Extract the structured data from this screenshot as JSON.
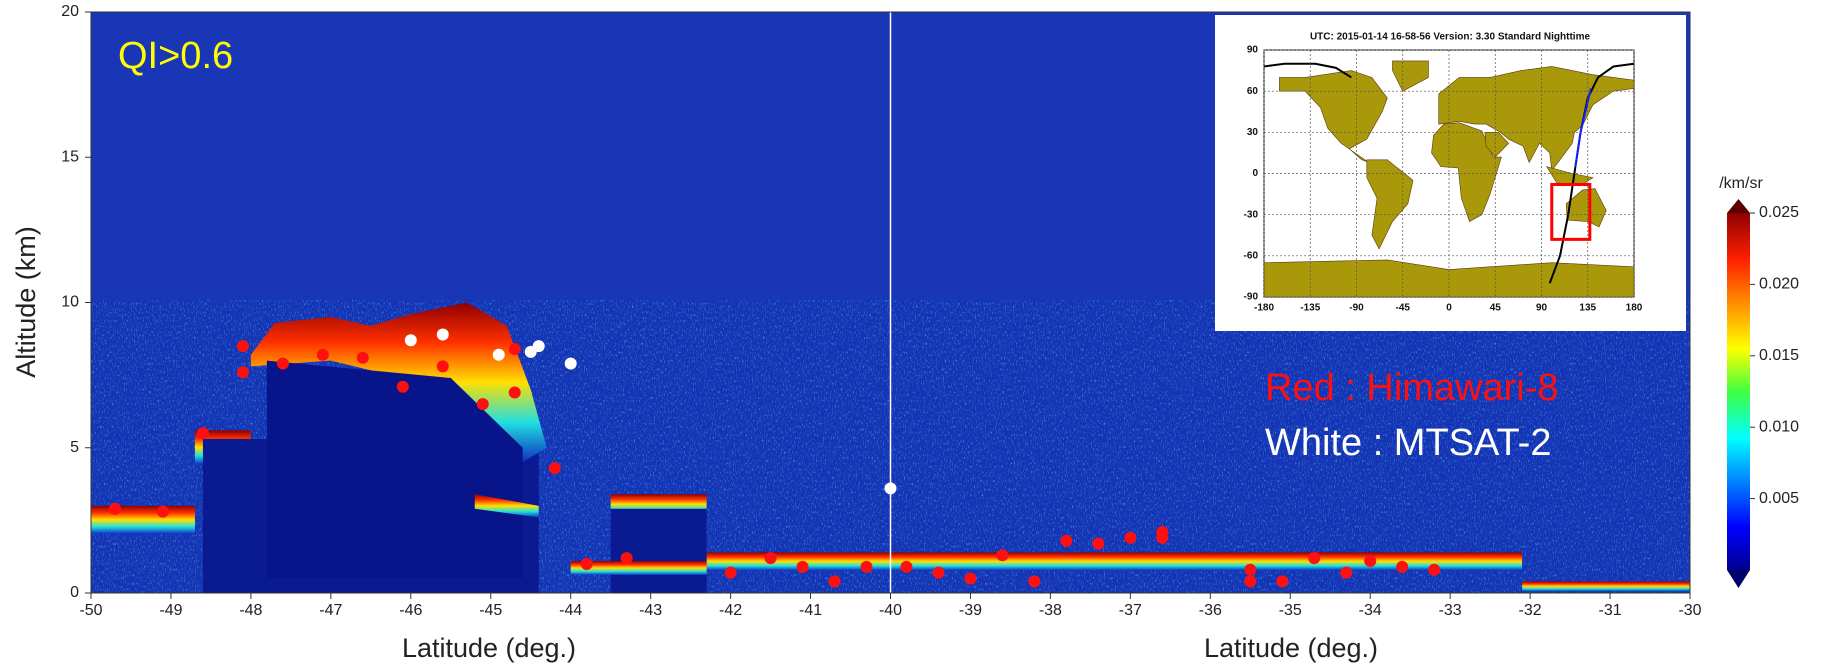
{
  "chart_data": {
    "type": "scatter",
    "annotation": "QI>0.6",
    "ylabel": "Altitude (km)",
    "xlabels": [
      "Latitude (deg.)",
      "Latitude (deg.)"
    ],
    "xlim": [
      -50,
      -30
    ],
    "xticks": [
      -50,
      -49,
      -48,
      -47,
      -46,
      -45,
      -44,
      -43,
      -42,
      -41,
      -40,
      -39,
      -38,
      -37,
      -36,
      -35,
      -34,
      -33,
      -32,
      -31,
      -30
    ],
    "ylim": [
      0,
      20
    ],
    "yticks": [
      0,
      5,
      10,
      15,
      20
    ],
    "series": [
      {
        "name": "Red : Himawari-8",
        "color": "#ff1010",
        "x": [
          -49.7,
          -49.1,
          -48.6,
          -48.1,
          -48.1,
          -47.6,
          -47.1,
          -46.6,
          -46.1,
          -45.6,
          -45.1,
          -44.7,
          -44.7,
          -44.2,
          -43.8,
          -43.3,
          -42.0,
          -41.5,
          -41.1,
          -40.7,
          -40.3,
          -39.8,
          -39.4,
          -39.0,
          -38.6,
          -38.2,
          -37.8,
          -37.4,
          -37.0,
          -36.6,
          -36.6,
          -35.5,
          -35.5,
          -35.1,
          -34.7,
          -34.3,
          -34.0,
          -33.6,
          -33.2
        ],
        "values": [
          2.9,
          2.8,
          5.5,
          8.5,
          7.6,
          7.9,
          8.2,
          8.1,
          7.1,
          7.8,
          6.5,
          6.9,
          8.4,
          4.3,
          1.0,
          1.2,
          0.7,
          1.2,
          0.9,
          0.4,
          0.9,
          0.9,
          0.7,
          0.5,
          1.3,
          0.4,
          1.8,
          1.7,
          1.9,
          1.9,
          2.1,
          0.8,
          0.4,
          0.4,
          1.2,
          0.7,
          1.1,
          0.9,
          0.8
        ]
      },
      {
        "name": "White : MTSAT-2",
        "color": "#ffffff",
        "x": [
          -46.0,
          -45.6,
          -44.9,
          -44.5,
          -44.4,
          -44.0,
          -40.0
        ],
        "values": [
          8.7,
          8.9,
          8.2,
          8.3,
          8.5,
          7.9,
          3.6
        ]
      }
    ],
    "colorbar": {
      "label": "/km/sr",
      "lim": [
        0,
        0.025
      ],
      "ticks": [
        0.005,
        {
          "value": 0.01,
          "label": "0.010"
        },
        0.015,
        {
          "value": 0.02,
          "label": "0.020"
        },
        0.025
      ]
    }
  },
  "inset": {
    "title": "UTC: 2015-01-14  16-58-56    Version: 3.30  Standard     Nighttime",
    "xlim": [
      -180,
      180
    ],
    "ylim": [
      -90,
      90
    ],
    "xticks": [
      -180,
      -135,
      -90,
      -45,
      0,
      45,
      90,
      135,
      180
    ],
    "yticks": [
      -90,
      -60,
      -30,
      0,
      30,
      60,
      90
    ]
  }
}
